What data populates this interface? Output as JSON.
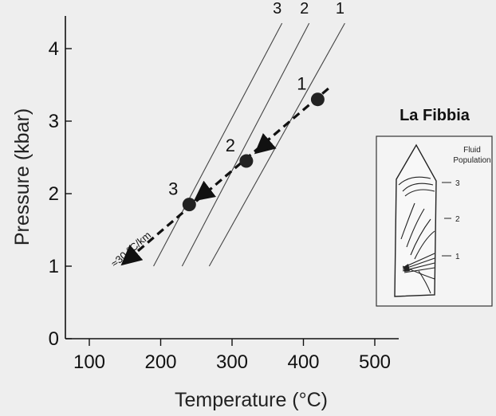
{
  "chart_data": {
    "type": "line",
    "title": "",
    "xlabel": "Temperature (°C)",
    "ylabel": "Pressure (kbar)",
    "xlim": [
      100,
      530
    ],
    "ylim": [
      0,
      4.5
    ],
    "x_ticks": [
      "100",
      "200",
      "300",
      "400",
      "500"
    ],
    "y_ticks": [
      "0",
      "1",
      "2",
      "3",
      "4"
    ],
    "grid": false,
    "isochores": [
      {
        "label": "1",
        "points": [
          [
            268,
            1.0
          ],
          [
            458,
            4.35
          ]
        ]
      },
      {
        "label": "2",
        "points": [
          [
            230,
            1.0
          ],
          [
            408,
            4.35
          ]
        ]
      },
      {
        "label": "3",
        "points": [
          [
            190,
            1.0
          ],
          [
            370,
            4.35
          ]
        ]
      }
    ],
    "entrapment_points": [
      {
        "label": "1",
        "x": 420,
        "y": 3.3
      },
      {
        "label": "2",
        "x": 320,
        "y": 2.45
      },
      {
        "label": "3",
        "x": 240,
        "y": 1.85
      }
    ],
    "trend": {
      "label": "≈30 °C/km",
      "from": [
        435,
        3.45
      ],
      "to": [
        155,
        1.1
      ],
      "style": "dashed-arrow"
    },
    "inset": {
      "title": "La Fibbia",
      "legend_title": [
        "Fluid",
        "Population"
      ],
      "populations": [
        "3",
        "2",
        "1"
      ]
    }
  }
}
